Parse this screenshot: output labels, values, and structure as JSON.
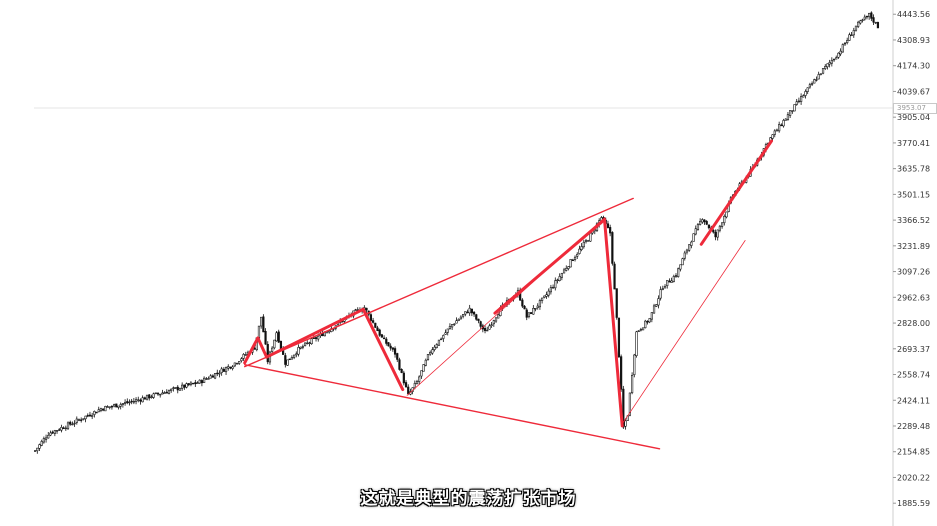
{
  "chart_data": {
    "type": "candlestick",
    "title": "",
    "xlabel": "",
    "ylabel": "",
    "ylim": [
      1850,
      4450
    ],
    "y_ticks": [
      "4443.56",
      "4308.93",
      "4174.30",
      "4039.67",
      "3905.04",
      "3770.41",
      "3635.78",
      "3501.15",
      "3366.52",
      "3231.89",
      "3097.26",
      "2962.63",
      "2828.00",
      "2693.37",
      "2558.74",
      "2424.11",
      "2289.48",
      "2154.85",
      "2020.22",
      "1885.59"
    ],
    "horizontal_line": {
      "value": 3953.07,
      "label": "3953.07",
      "color": "#e6e6e6"
    },
    "candle_color": "#111111",
    "trendline_color": "#ee2a3a",
    "price_path": [
      {
        "i": 0,
        "v": 2160
      },
      {
        "i": 6,
        "v": 2250
      },
      {
        "i": 18,
        "v": 2310
      },
      {
        "i": 30,
        "v": 2380
      },
      {
        "i": 45,
        "v": 2420
      },
      {
        "i": 60,
        "v": 2470
      },
      {
        "i": 75,
        "v": 2520
      },
      {
        "i": 90,
        "v": 2610
      },
      {
        "i": 100,
        "v": 2700
      },
      {
        "i": 103,
        "v": 2860
      },
      {
        "i": 106,
        "v": 2630
      },
      {
        "i": 110,
        "v": 2780
      },
      {
        "i": 114,
        "v": 2620
      },
      {
        "i": 120,
        "v": 2690
      },
      {
        "i": 132,
        "v": 2780
      },
      {
        "i": 145,
        "v": 2880
      },
      {
        "i": 150,
        "v": 2910
      },
      {
        "i": 158,
        "v": 2750
      },
      {
        "i": 164,
        "v": 2670
      },
      {
        "i": 170,
        "v": 2450
      },
      {
        "i": 174,
        "v": 2520
      },
      {
        "i": 180,
        "v": 2680
      },
      {
        "i": 190,
        "v": 2820
      },
      {
        "i": 198,
        "v": 2900
      },
      {
        "i": 205,
        "v": 2780
      },
      {
        "i": 212,
        "v": 2900
      },
      {
        "i": 220,
        "v": 2990
      },
      {
        "i": 224,
        "v": 2860
      },
      {
        "i": 232,
        "v": 2960
      },
      {
        "i": 242,
        "v": 3120
      },
      {
        "i": 252,
        "v": 3270
      },
      {
        "i": 258,
        "v": 3380
      },
      {
        "i": 262,
        "v": 3300
      },
      {
        "i": 265,
        "v": 2850
      },
      {
        "i": 268,
        "v": 2280
      },
      {
        "i": 270,
        "v": 2350
      },
      {
        "i": 274,
        "v": 2780
      },
      {
        "i": 280,
        "v": 2850
      },
      {
        "i": 286,
        "v": 3020
      },
      {
        "i": 292,
        "v": 3080
      },
      {
        "i": 298,
        "v": 3240
      },
      {
        "i": 304,
        "v": 3380
      },
      {
        "i": 310,
        "v": 3280
      },
      {
        "i": 318,
        "v": 3500
      },
      {
        "i": 326,
        "v": 3620
      },
      {
        "i": 334,
        "v": 3780
      },
      {
        "i": 342,
        "v": 3900
      },
      {
        "i": 350,
        "v": 4020
      },
      {
        "i": 358,
        "v": 4140
      },
      {
        "i": 366,
        "v": 4240
      },
      {
        "i": 374,
        "v": 4380
      },
      {
        "i": 380,
        "v": 4440
      },
      {
        "i": 384,
        "v": 4380
      }
    ],
    "trendlines": [
      {
        "from": {
          "i": 96,
          "v": 2600
        },
        "to": {
          "i": 273,
          "v": 3480
        },
        "width": 1.4
      },
      {
        "from": {
          "i": 96,
          "v": 2610
        },
        "to": {
          "i": 285,
          "v": 2170
        },
        "width": 1.4
      },
      {
        "from": {
          "i": 170,
          "v": 2450
        },
        "to": {
          "i": 260,
          "v": 3380
        },
        "width": 0.8
      },
      {
        "from": {
          "i": 268,
          "v": 2300
        },
        "to": {
          "i": 324,
          "v": 3260
        },
        "width": 0.8
      },
      {
        "from": {
          "i": 304,
          "v": 3240
        },
        "to": {
          "i": 336,
          "v": 3780
        },
        "width": 3
      },
      {
        "from": {
          "i": 96,
          "v": 2620
        },
        "to": {
          "i": 102,
          "v": 2750
        },
        "width": 3
      },
      {
        "from": {
          "i": 102,
          "v": 2750
        },
        "to": {
          "i": 106,
          "v": 2650
        },
        "width": 3
      },
      {
        "from": {
          "i": 106,
          "v": 2650
        },
        "to": {
          "i": 150,
          "v": 2900
        },
        "width": 3
      },
      {
        "from": {
          "i": 150,
          "v": 2900
        },
        "to": {
          "i": 168,
          "v": 2480
        },
        "width": 3
      },
      {
        "from": {
          "i": 210,
          "v": 2880
        },
        "to": {
          "i": 260,
          "v": 3370
        },
        "width": 3
      },
      {
        "from": {
          "i": 260,
          "v": 3360
        },
        "to": {
          "i": 268,
          "v": 2290
        },
        "width": 3
      }
    ]
  },
  "subtitle": "这就是典型的震荡扩张市场"
}
